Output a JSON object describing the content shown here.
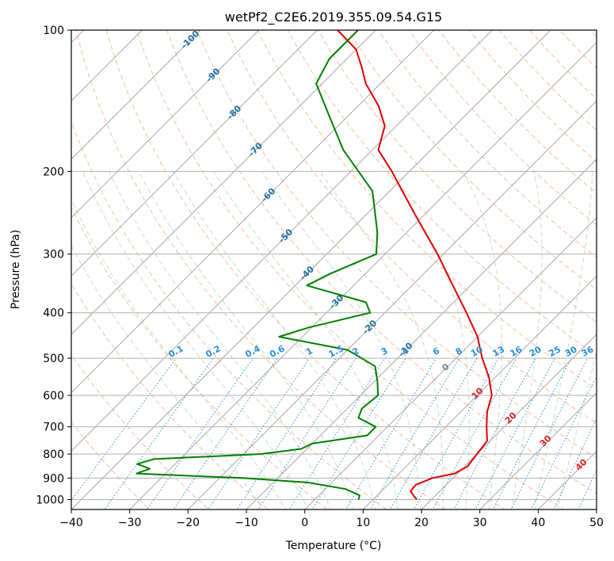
{
  "chart_data": {
    "type": "line",
    "subtype": "skew-t log-p diagram",
    "title": "wetPf2_C2E6.2019.355.09.54.G15",
    "xlabel": "Temperature (°C)",
    "ylabel": "Pressure (hPa)",
    "xlim": [
      -40,
      50
    ],
    "ylim": [
      1050,
      100
    ],
    "y_scale": "log",
    "grid": true,
    "x_ticks": [
      "−40",
      "−30",
      "−20",
      "−10",
      "0",
      "10",
      "20",
      "30",
      "40",
      "50"
    ],
    "y_ticks": [
      "100",
      "200",
      "300",
      "400",
      "500",
      "600",
      "700",
      "800",
      "900",
      "1000"
    ],
    "isotherm_labels": {
      "color": "#1f6f9f",
      "labels": [
        "-100",
        "-90",
        "-80",
        "-70",
        "-60",
        "-50",
        "-40",
        "-30",
        "-20",
        "-10"
      ]
    },
    "mixing_ratio_labels": {
      "color": "#2b8fd6",
      "labels": [
        "0.1",
        "0.2",
        "0.4",
        "0.6",
        "1",
        "1.5",
        "2",
        "3",
        "4",
        "6",
        "8",
        "10",
        "13",
        "16",
        "20",
        "25",
        "30",
        "36"
      ]
    },
    "moist_adiabat_labels": {
      "color": "#d62728",
      "labels": [
        "10",
        "20",
        "30",
        "40"
      ]
    },
    "freezing_label": {
      "color": "#808080",
      "text": "0"
    },
    "series": [
      {
        "role": "temperature",
        "color": "#e00000",
        "points": [
          {
            "p": 1000,
            "t": 17.5
          },
          {
            "p": 980,
            "t": 16.2
          },
          {
            "p": 960,
            "t": 15.0
          },
          {
            "p": 930,
            "t": 14.8
          },
          {
            "p": 900,
            "t": 16.5
          },
          {
            "p": 880,
            "t": 19.5
          },
          {
            "p": 850,
            "t": 20.5
          },
          {
            "p": 800,
            "t": 20.0
          },
          {
            "p": 750,
            "t": 19.5
          },
          {
            "p": 700,
            "t": 17.0
          },
          {
            "p": 650,
            "t": 14.5
          },
          {
            "p": 600,
            "t": 12.5
          },
          {
            "p": 550,
            "t": 9.0
          },
          {
            "p": 500,
            "t": 4.5
          },
          {
            "p": 450,
            "t": 0.0
          },
          {
            "p": 400,
            "t": -6.0
          },
          {
            "p": 350,
            "t": -13.0
          },
          {
            "p": 300,
            "t": -21.0
          },
          {
            "p": 250,
            "t": -31.0
          },
          {
            "p": 200,
            "t": -43.0
          },
          {
            "p": 180,
            "t": -49.0
          },
          {
            "p": 160,
            "t": -52.0
          },
          {
            "p": 145,
            "t": -56.5
          },
          {
            "p": 130,
            "t": -62.5
          },
          {
            "p": 120,
            "t": -66.0
          },
          {
            "p": 110,
            "t": -70.0
          },
          {
            "p": 100,
            "t": -76.5
          }
        ]
      },
      {
        "role": "dewpoint",
        "color": "#008000",
        "points": [
          {
            "p": 1000,
            "t": 7.5
          },
          {
            "p": 980,
            "t": 7.0
          },
          {
            "p": 950,
            "t": 3.5
          },
          {
            "p": 920,
            "t": -4.0
          },
          {
            "p": 900,
            "t": -16.0
          },
          {
            "p": 880,
            "t": -35.0
          },
          {
            "p": 860,
            "t": -33.5
          },
          {
            "p": 840,
            "t": -36.5
          },
          {
            "p": 820,
            "t": -34.5
          },
          {
            "p": 800,
            "t": -17.0
          },
          {
            "p": 780,
            "t": -11.0
          },
          {
            "p": 760,
            "t": -10.0
          },
          {
            "p": 730,
            "t": -2.0
          },
          {
            "p": 700,
            "t": -2.0
          },
          {
            "p": 670,
            "t": -6.5
          },
          {
            "p": 640,
            "t": -7.5
          },
          {
            "p": 600,
            "t": -7.0
          },
          {
            "p": 560,
            "t": -9.5
          },
          {
            "p": 520,
            "t": -12.5
          },
          {
            "p": 480,
            "t": -20.0
          },
          {
            "p": 450,
            "t": -34.0
          },
          {
            "p": 430,
            "t": -30.5
          },
          {
            "p": 400,
            "t": -22.5
          },
          {
            "p": 380,
            "t": -25.0
          },
          {
            "p": 350,
            "t": -38.0
          },
          {
            "p": 330,
            "t": -36.0
          },
          {
            "p": 300,
            "t": -31.5
          },
          {
            "p": 270,
            "t": -35.0
          },
          {
            "p": 250,
            "t": -38.0
          },
          {
            "p": 220,
            "t": -43.0
          },
          {
            "p": 180,
            "t": -55.0
          },
          {
            "p": 150,
            "t": -64.0
          },
          {
            "p": 130,
            "t": -71.0
          },
          {
            "p": 115,
            "t": -73.0
          },
          {
            "p": 100,
            "t": -73.0
          }
        ]
      }
    ]
  }
}
